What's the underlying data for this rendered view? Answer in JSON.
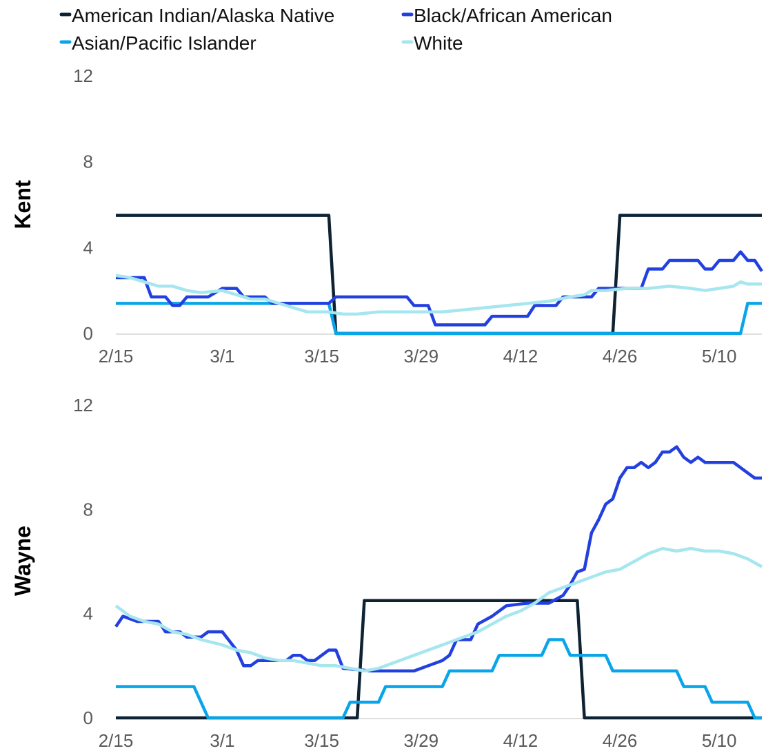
{
  "chart_data": [
    {
      "type": "line",
      "title": "",
      "panel_label": "Kent",
      "xlabel": "",
      "ylabel": "",
      "x_ticks": [
        "2/15",
        "3/1",
        "3/15",
        "3/29",
        "4/12",
        "4/26",
        "5/10"
      ],
      "y_ticks": [
        "0",
        "4",
        "8",
        "12"
      ],
      "ylim": [
        0,
        12
      ],
      "x_start": "2/15",
      "x_end": "5/16",
      "series": [
        {
          "name": "American Indian/Alaska Native",
          "color": "#0d2233",
          "points": [
            [
              "2/15",
              5.5
            ],
            [
              "3/16",
              5.5
            ],
            [
              "3/17",
              0
            ],
            [
              "4/25",
              0
            ],
            [
              "4/26",
              5.5
            ],
            [
              "5/16",
              5.5
            ]
          ]
        },
        {
          "name": "Asian/Pacific Islander",
          "color": "#0aa5e8",
          "points": [
            [
              "2/15",
              1.4
            ],
            [
              "3/16",
              1.4
            ],
            [
              "3/17",
              0
            ],
            [
              "5/13",
              0
            ],
            [
              "5/14",
              1.4
            ],
            [
              "5/16",
              1.4
            ]
          ]
        },
        {
          "name": "Black/African American",
          "color": "#2240e0",
          "points": [
            [
              "2/15",
              2.6
            ],
            [
              "2/19",
              2.6
            ],
            [
              "2/20",
              1.7
            ],
            [
              "2/22",
              1.7
            ],
            [
              "2/23",
              1.3
            ],
            [
              "2/24",
              1.3
            ],
            [
              "2/25",
              1.7
            ],
            [
              "2/28",
              1.7
            ],
            [
              "3/1",
              2.1
            ],
            [
              "3/3",
              2.1
            ],
            [
              "3/4",
              1.7
            ],
            [
              "3/7",
              1.7
            ],
            [
              "3/8",
              1.4
            ],
            [
              "3/16",
              1.4
            ],
            [
              "3/17",
              1.7
            ],
            [
              "3/27",
              1.7
            ],
            [
              "3/28",
              1.3
            ],
            [
              "3/30",
              1.3
            ],
            [
              "3/31",
              0.4
            ],
            [
              "4/7",
              0.4
            ],
            [
              "4/8",
              0.8
            ],
            [
              "4/13",
              0.8
            ],
            [
              "4/14",
              1.3
            ],
            [
              "4/17",
              1.3
            ],
            [
              "4/18",
              1.7
            ],
            [
              "4/22",
              1.7
            ],
            [
              "4/23",
              2.1
            ],
            [
              "4/29",
              2.1
            ],
            [
              "4/30",
              3.0
            ],
            [
              "5/2",
              3.0
            ],
            [
              "5/3",
              3.4
            ],
            [
              "5/7",
              3.4
            ],
            [
              "5/8",
              3.0
            ],
            [
              "5/9",
              3.0
            ],
            [
              "5/10",
              3.4
            ],
            [
              "5/12",
              3.4
            ],
            [
              "5/13",
              3.8
            ],
            [
              "5/14",
              3.4
            ],
            [
              "5/15",
              3.4
            ],
            [
              "5/16",
              2.9
            ]
          ]
        },
        {
          "name": "White",
          "color": "#a6e6ef",
          "points": [
            [
              "2/15",
              2.7
            ],
            [
              "2/17",
              2.6
            ],
            [
              "2/19",
              2.4
            ],
            [
              "2/21",
              2.2
            ],
            [
              "2/23",
              2.2
            ],
            [
              "2/25",
              2.0
            ],
            [
              "2/27",
              1.9
            ],
            [
              "3/1",
              2.0
            ],
            [
              "3/3",
              1.8
            ],
            [
              "3/5",
              1.6
            ],
            [
              "3/7",
              1.6
            ],
            [
              "3/9",
              1.4
            ],
            [
              "3/11",
              1.2
            ],
            [
              "3/13",
              1.0
            ],
            [
              "3/16",
              1.0
            ],
            [
              "3/18",
              0.9
            ],
            [
              "3/20",
              0.9
            ],
            [
              "3/23",
              1.0
            ],
            [
              "3/26",
              1.0
            ],
            [
              "3/29",
              1.0
            ],
            [
              "4/1",
              1.0
            ],
            [
              "4/4",
              1.1
            ],
            [
              "4/7",
              1.2
            ],
            [
              "4/10",
              1.3
            ],
            [
              "4/13",
              1.4
            ],
            [
              "4/16",
              1.5
            ],
            [
              "4/19",
              1.7
            ],
            [
              "4/21",
              1.8
            ],
            [
              "4/22",
              2.0
            ],
            [
              "4/24",
              2.0
            ],
            [
              "4/27",
              2.1
            ],
            [
              "4/30",
              2.1
            ],
            [
              "5/3",
              2.2
            ],
            [
              "5/6",
              2.1
            ],
            [
              "5/8",
              2.0
            ],
            [
              "5/10",
              2.1
            ],
            [
              "5/12",
              2.2
            ],
            [
              "5/13",
              2.4
            ],
            [
              "5/14",
              2.3
            ],
            [
              "5/16",
              2.3
            ]
          ]
        }
      ]
    },
    {
      "type": "line",
      "title": "",
      "panel_label": "Wayne",
      "xlabel": "",
      "ylabel": "",
      "x_ticks": [
        "2/15",
        "3/1",
        "3/15",
        "3/29",
        "4/12",
        "4/26",
        "5/10"
      ],
      "y_ticks": [
        "0",
        "4",
        "8",
        "12"
      ],
      "ylim": [
        0,
        12
      ],
      "x_start": "2/15",
      "x_end": "5/16",
      "series": [
        {
          "name": "American Indian/Alaska Native",
          "color": "#0d2233",
          "points": [
            [
              "2/15",
              0
            ],
            [
              "3/20",
              0
            ],
            [
              "3/21",
              4.5
            ],
            [
              "4/20",
              4.5
            ],
            [
              "4/21",
              0
            ],
            [
              "5/16",
              0
            ]
          ]
        },
        {
          "name": "Asian/Pacific Islander",
          "color": "#0aa5e8",
          "points": [
            [
              "2/15",
              1.2
            ],
            [
              "2/26",
              1.2
            ],
            [
              "2/28",
              0
            ],
            [
              "3/18",
              0
            ],
            [
              "3/19",
              0.6
            ],
            [
              "3/23",
              0.6
            ],
            [
              "3/24",
              1.2
            ],
            [
              "4/1",
              1.2
            ],
            [
              "4/2",
              1.8
            ],
            [
              "4/8",
              1.8
            ],
            [
              "4/9",
              2.4
            ],
            [
              "4/15",
              2.4
            ],
            [
              "4/16",
              3.0
            ],
            [
              "4/18",
              3.0
            ],
            [
              "4/19",
              2.4
            ],
            [
              "4/24",
              2.4
            ],
            [
              "4/25",
              1.8
            ],
            [
              "5/4",
              1.8
            ],
            [
              "5/5",
              1.2
            ],
            [
              "5/8",
              1.2
            ],
            [
              "5/9",
              0.6
            ],
            [
              "5/14",
              0.6
            ],
            [
              "5/15",
              0
            ],
            [
              "5/16",
              0
            ]
          ]
        },
        {
          "name": "Black/African American",
          "color": "#2240e0",
          "points": [
            [
              "2/15",
              3.5
            ],
            [
              "2/16",
              3.9
            ],
            [
              "2/18",
              3.7
            ],
            [
              "2/21",
              3.7
            ],
            [
              "2/22",
              3.3
            ],
            [
              "2/24",
              3.3
            ],
            [
              "2/25",
              3.1
            ],
            [
              "2/27",
              3.1
            ],
            [
              "2/28",
              3.3
            ],
            [
              "3/1",
              3.3
            ],
            [
              "3/3",
              2.6
            ],
            [
              "3/4",
              2.0
            ],
            [
              "3/5",
              2.0
            ],
            [
              "3/6",
              2.2
            ],
            [
              "3/9",
              2.2
            ],
            [
              "3/10",
              2.2
            ],
            [
              "3/11",
              2.4
            ],
            [
              "3/12",
              2.4
            ],
            [
              "3/13",
              2.2
            ],
            [
              "3/14",
              2.2
            ],
            [
              "3/16",
              2.6
            ],
            [
              "3/17",
              2.6
            ],
            [
              "3/18",
              1.9
            ],
            [
              "3/22",
              1.8
            ],
            [
              "3/28",
              1.8
            ],
            [
              "3/30",
              2.0
            ],
            [
              "4/1",
              2.2
            ],
            [
              "4/2",
              2.4
            ],
            [
              "4/3",
              3.0
            ],
            [
              "4/5",
              3.0
            ],
            [
              "4/6",
              3.6
            ],
            [
              "4/8",
              3.9
            ],
            [
              "4/10",
              4.3
            ],
            [
              "4/13",
              4.4
            ],
            [
              "4/16",
              4.4
            ],
            [
              "4/18",
              4.7
            ],
            [
              "4/19",
              5.1
            ],
            [
              "4/20",
              5.6
            ],
            [
              "4/21",
              5.7
            ],
            [
              "4/22",
              7.1
            ],
            [
              "4/23",
              7.6
            ],
            [
              "4/24",
              8.2
            ],
            [
              "4/25",
              8.4
            ],
            [
              "4/26",
              9.2
            ],
            [
              "4/27",
              9.6
            ],
            [
              "4/28",
              9.6
            ],
            [
              "4/29",
              9.8
            ],
            [
              "4/30",
              9.6
            ],
            [
              "5/1",
              9.8
            ],
            [
              "5/2",
              10.2
            ],
            [
              "5/3",
              10.2
            ],
            [
              "5/4",
              10.4
            ],
            [
              "5/5",
              10.0
            ],
            [
              "5/6",
              9.8
            ],
            [
              "5/7",
              10.0
            ],
            [
              "5/8",
              9.8
            ],
            [
              "5/11",
              9.8
            ],
            [
              "5/12",
              9.8
            ],
            [
              "5/14",
              9.4
            ],
            [
              "5/15",
              9.2
            ],
            [
              "5/16",
              9.2
            ]
          ]
        },
        {
          "name": "White",
          "color": "#a6e6ef",
          "points": [
            [
              "2/15",
              4.3
            ],
            [
              "2/17",
              3.9
            ],
            [
              "2/19",
              3.7
            ],
            [
              "2/21",
              3.6
            ],
            [
              "2/23",
              3.3
            ],
            [
              "2/25",
              3.2
            ],
            [
              "2/27",
              3.0
            ],
            [
              "3/1",
              2.8
            ],
            [
              "3/3",
              2.6
            ],
            [
              "3/5",
              2.5
            ],
            [
              "3/7",
              2.3
            ],
            [
              "3/9",
              2.2
            ],
            [
              "3/11",
              2.2
            ],
            [
              "3/13",
              2.1
            ],
            [
              "3/15",
              2.0
            ],
            [
              "3/17",
              2.0
            ],
            [
              "3/19",
              1.9
            ],
            [
              "3/21",
              1.8
            ],
            [
              "3/23",
              1.9
            ],
            [
              "3/25",
              2.1
            ],
            [
              "3/27",
              2.3
            ],
            [
              "3/29",
              2.5
            ],
            [
              "3/31",
              2.7
            ],
            [
              "4/2",
              2.9
            ],
            [
              "4/4",
              3.1
            ],
            [
              "4/6",
              3.3
            ],
            [
              "4/8",
              3.6
            ],
            [
              "4/10",
              3.9
            ],
            [
              "4/12",
              4.1
            ],
            [
              "4/14",
              4.4
            ],
            [
              "4/16",
              4.8
            ],
            [
              "4/18",
              5.0
            ],
            [
              "4/20",
              5.2
            ],
            [
              "4/22",
              5.4
            ],
            [
              "4/24",
              5.6
            ],
            [
              "4/26",
              5.7
            ],
            [
              "4/28",
              6.0
            ],
            [
              "4/30",
              6.3
            ],
            [
              "5/2",
              6.5
            ],
            [
              "5/4",
              6.4
            ],
            [
              "5/6",
              6.5
            ],
            [
              "5/8",
              6.4
            ],
            [
              "5/10",
              6.4
            ],
            [
              "5/12",
              6.3
            ],
            [
              "5/14",
              6.1
            ],
            [
              "5/16",
              5.8
            ]
          ]
        }
      ]
    }
  ],
  "legend": [
    {
      "label": "American Indian/Alaska Native",
      "color": "#0d2233"
    },
    {
      "label": "Asian/Pacific Islander",
      "color": "#0aa5e8"
    },
    {
      "label": "Black/African American",
      "color": "#2240e0"
    },
    {
      "label": "White",
      "color": "#a6e6ef"
    }
  ]
}
